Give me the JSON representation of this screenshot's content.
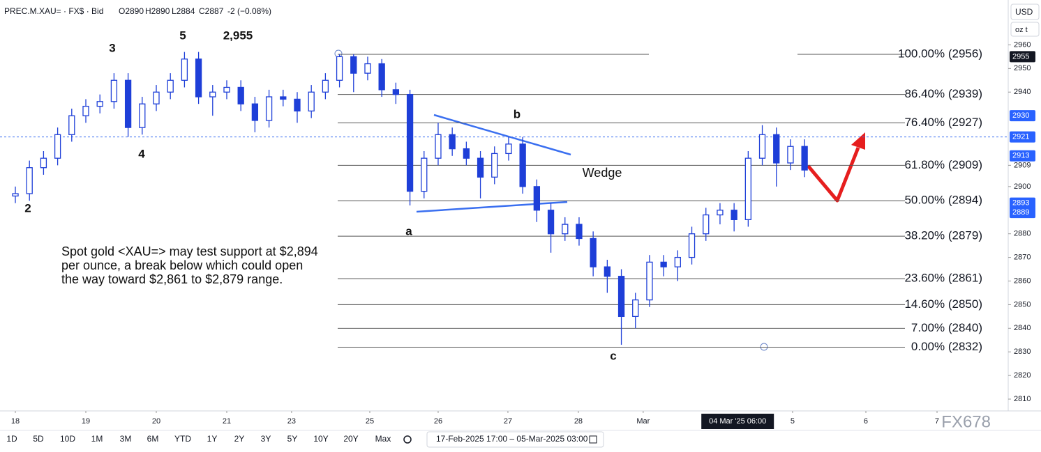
{
  "header": {
    "symbol": "PREC.M.XAU= · FX$ · Bid",
    "open": "O2890",
    "high": "H2890",
    "low": "L2884",
    "close": "C2887",
    "change": "-2 (−0.08%)"
  },
  "currency": "USD",
  "unit": "oz t",
  "chart_data": {
    "type": "candlestick",
    "color": "#1e3fd8",
    "x": [
      0,
      0.2,
      0.4,
      0.6,
      0.8,
      1,
      1.2,
      1.4,
      1.6,
      1.8,
      2,
      2.2,
      2.4,
      2.6,
      2.8,
      3,
      3.2,
      3.4,
      3.6,
      3.8,
      4,
      4.2,
      4.4,
      4.6,
      4.8,
      5,
      5.2,
      5.4,
      5.6,
      5.8,
      6,
      6.2,
      6.4,
      6.6,
      6.8,
      7,
      7.2,
      7.4,
      7.6,
      7.8,
      8,
      8.2,
      8.4,
      8.6,
      8.8,
      9,
      9.2,
      9.4,
      9.6,
      9.8,
      10,
      10.2,
      10.4,
      10.6,
      10.8,
      11,
      11.2
    ],
    "open": [
      2896,
      2897,
      2908,
      2912,
      2922,
      2930,
      2934,
      2936,
      2945,
      2925,
      2935,
      2940,
      2945,
      2954,
      2938,
      2940,
      2942,
      2935,
      2928,
      2938,
      2937,
      2932,
      2940,
      2945,
      2955,
      2948,
      2952,
      2941,
      2939,
      2898,
      2912,
      2922,
      2916,
      2912,
      2904,
      2914,
      2918,
      2900,
      2890,
      2880,
      2884,
      2878,
      2866,
      2862,
      2845,
      2852,
      2868,
      2866,
      2870,
      2880,
      2888,
      2890,
      2886,
      2912,
      2922,
      2910,
      2917
    ],
    "high": [
      2900,
      2911,
      2915,
      2925,
      2933,
      2937,
      2939,
      2948,
      2948,
      2938,
      2943,
      2948,
      2957,
      2957,
      2943,
      2945,
      2945,
      2938,
      2941,
      2941,
      2940,
      2943,
      2948,
      2956,
      2956,
      2955,
      2954,
      2944,
      2941,
      2915,
      2927,
      2925,
      2919,
      2915,
      2917,
      2921,
      2921,
      2903,
      2893,
      2887,
      2887,
      2881,
      2869,
      2865,
      2855,
      2871,
      2871,
      2873,
      2883,
      2891,
      2893,
      2893,
      2915,
      2926,
      2925,
      2920,
      2920
    ],
    "low": [
      2893,
      2894,
      2905,
      2909,
      2919,
      2927,
      2931,
      2933,
      2921,
      2922,
      2932,
      2937,
      2942,
      2935,
      2930,
      2937,
      2932,
      2923,
      2925,
      2934,
      2927,
      2929,
      2937,
      2942,
      2940,
      2945,
      2938,
      2935,
      2892,
      2895,
      2909,
      2913,
      2909,
      2895,
      2901,
      2911,
      2897,
      2885,
      2872,
      2877,
      2875,
      2862,
      2855,
      2833,
      2840,
      2849,
      2862,
      2860,
      2867,
      2877,
      2884,
      2881,
      2883,
      2909,
      2900,
      2907,
      2904
    ],
    "close": [
      2897,
      2908,
      2912,
      2922,
      2930,
      2934,
      2936,
      2945,
      2925,
      2935,
      2940,
      2945,
      2954,
      2938,
      2940,
      2942,
      2935,
      2928,
      2938,
      2937,
      2932,
      2940,
      2945,
      2955,
      2948,
      2952,
      2941,
      2939,
      2898,
      2912,
      2922,
      2916,
      2912,
      2904,
      2914,
      2918,
      2900,
      2890,
      2880,
      2884,
      2878,
      2866,
      2862,
      2845,
      2852,
      2868,
      2866,
      2870,
      2880,
      2888,
      2890,
      2886,
      2912,
      2922,
      2910,
      2917,
      2907
    ],
    "xlim": [
      -0.218,
      14.09
    ],
    "ylim": [
      2805,
      2979
    ],
    "xticks": [
      {
        "value": 0,
        "label": "18"
      },
      {
        "value": 1,
        "label": "19"
      },
      {
        "value": 2,
        "label": "20"
      },
      {
        "value": 3,
        "label": "21"
      },
      {
        "value": 3.92,
        "label": "23"
      },
      {
        "value": 5.03,
        "label": "25"
      },
      {
        "value": 6,
        "label": "26"
      },
      {
        "value": 6.99,
        "label": "27"
      },
      {
        "value": 7.99,
        "label": "28"
      },
      {
        "value": 8.91,
        "label": "Mar"
      },
      {
        "value": 11.03,
        "label": "5"
      },
      {
        "value": 12.07,
        "label": "6"
      },
      {
        "value": 13.08,
        "label": "7"
      }
    ],
    "crosshair_x": {
      "value": 10.25,
      "label": "04 Mar '25  06:00"
    },
    "yticks": [
      2960,
      2950,
      2940,
      2909,
      2900,
      2880,
      2870,
      2860,
      2850,
      2840,
      2830,
      2820,
      2810
    ],
    "last_price": 2955,
    "price_labels": [
      2930,
      2921,
      2913,
      2893,
      2889
    ],
    "current_price": 2921,
    "fib_levels": [
      {
        "value": 2956,
        "label": "100.00% (2956)"
      },
      {
        "value": 2939,
        "label": "86.40% (2939)"
      },
      {
        "value": 2927,
        "label": "76.40% (2927)"
      },
      {
        "value": 2909,
        "label": "61.80% (2909)"
      },
      {
        "value": 2894,
        "label": "50.00% (2894)"
      },
      {
        "value": 2879,
        "label": "38.20% (2879)"
      },
      {
        "value": 2861,
        "label": "23.60% (2861)"
      },
      {
        "value": 2850,
        "label": "14.60% (2850)"
      },
      {
        "value": 2840,
        "label": "7.00% (2840)"
      },
      {
        "value": 2832,
        "label": "0.00% (2832)"
      }
    ],
    "annotations": {
      "waves": [
        "2",
        "3",
        "4",
        "5",
        "2,955",
        "a",
        "b",
        "c"
      ],
      "pattern": "Wedge",
      "note": [
        "Spot gold <XAU=> may test support at $2,894",
        "per ounce, a break below which could open",
        "the way toward $2,861 to $2,879 range."
      ]
    }
  },
  "toolbar": {
    "ranges": [
      "1D",
      "5D",
      "10D",
      "1M",
      "3M",
      "6M",
      "YTD",
      "1Y",
      "2Y",
      "3Y",
      "5Y",
      "10Y",
      "20Y",
      "Max"
    ],
    "date_range": "17-Feb-2025 17:00 – 05-Mar-2025 03:00"
  },
  "watermark": "FX678"
}
